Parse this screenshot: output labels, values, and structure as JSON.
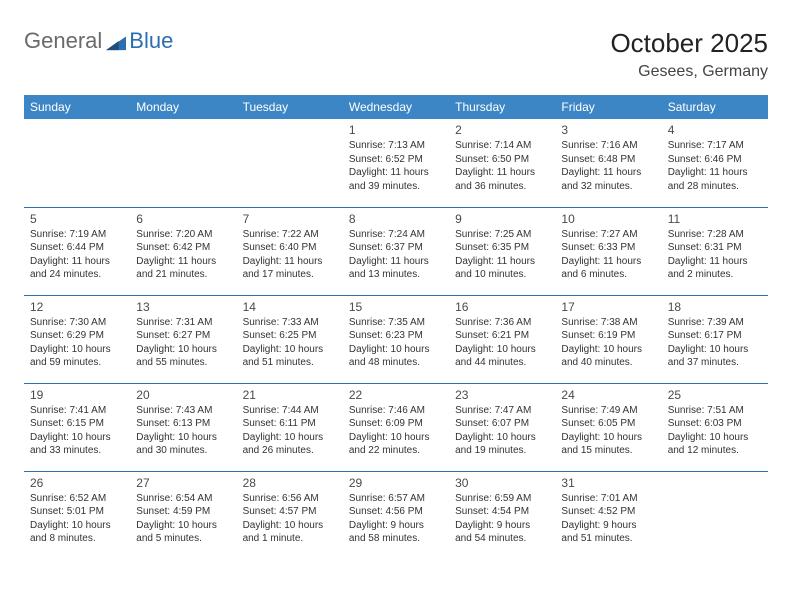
{
  "logo": {
    "general": "General",
    "blue": "Blue"
  },
  "title": "October 2025",
  "location": "Gesees, Germany",
  "weekdays": [
    "Sunday",
    "Monday",
    "Tuesday",
    "Wednesday",
    "Thursday",
    "Friday",
    "Saturday"
  ],
  "colors": {
    "header_bg": "#3d86c6",
    "header_text": "#ffffff",
    "rule": "#2b6fb0",
    "logo_gray": "#6a6a6a",
    "logo_blue": "#2b6fb0",
    "body_text": "#333333",
    "daynum_text": "#4a4a4a",
    "page_bg": "#ffffff"
  },
  "typography": {
    "title_fontsize": 26,
    "location_fontsize": 16,
    "weekday_fontsize": 12,
    "daynum_fontsize": 12,
    "cell_fontsize": 10
  },
  "grid": [
    [
      null,
      null,
      null,
      {
        "n": "1",
        "sunrise": "7:13 AM",
        "sunset": "6:52 PM",
        "day_h": 11,
        "day_m": 39
      },
      {
        "n": "2",
        "sunrise": "7:14 AM",
        "sunset": "6:50 PM",
        "day_h": 11,
        "day_m": 36
      },
      {
        "n": "3",
        "sunrise": "7:16 AM",
        "sunset": "6:48 PM",
        "day_h": 11,
        "day_m": 32
      },
      {
        "n": "4",
        "sunrise": "7:17 AM",
        "sunset": "6:46 PM",
        "day_h": 11,
        "day_m": 28
      }
    ],
    [
      {
        "n": "5",
        "sunrise": "7:19 AM",
        "sunset": "6:44 PM",
        "day_h": 11,
        "day_m": 24
      },
      {
        "n": "6",
        "sunrise": "7:20 AM",
        "sunset": "6:42 PM",
        "day_h": 11,
        "day_m": 21
      },
      {
        "n": "7",
        "sunrise": "7:22 AM",
        "sunset": "6:40 PM",
        "day_h": 11,
        "day_m": 17
      },
      {
        "n": "8",
        "sunrise": "7:24 AM",
        "sunset": "6:37 PM",
        "day_h": 11,
        "day_m": 13
      },
      {
        "n": "9",
        "sunrise": "7:25 AM",
        "sunset": "6:35 PM",
        "day_h": 11,
        "day_m": 10
      },
      {
        "n": "10",
        "sunrise": "7:27 AM",
        "sunset": "6:33 PM",
        "day_h": 11,
        "day_m": 6
      },
      {
        "n": "11",
        "sunrise": "7:28 AM",
        "sunset": "6:31 PM",
        "day_h": 11,
        "day_m": 2
      }
    ],
    [
      {
        "n": "12",
        "sunrise": "7:30 AM",
        "sunset": "6:29 PM",
        "day_h": 10,
        "day_m": 59
      },
      {
        "n": "13",
        "sunrise": "7:31 AM",
        "sunset": "6:27 PM",
        "day_h": 10,
        "day_m": 55
      },
      {
        "n": "14",
        "sunrise": "7:33 AM",
        "sunset": "6:25 PM",
        "day_h": 10,
        "day_m": 51
      },
      {
        "n": "15",
        "sunrise": "7:35 AM",
        "sunset": "6:23 PM",
        "day_h": 10,
        "day_m": 48
      },
      {
        "n": "16",
        "sunrise": "7:36 AM",
        "sunset": "6:21 PM",
        "day_h": 10,
        "day_m": 44
      },
      {
        "n": "17",
        "sunrise": "7:38 AM",
        "sunset": "6:19 PM",
        "day_h": 10,
        "day_m": 40
      },
      {
        "n": "18",
        "sunrise": "7:39 AM",
        "sunset": "6:17 PM",
        "day_h": 10,
        "day_m": 37
      }
    ],
    [
      {
        "n": "19",
        "sunrise": "7:41 AM",
        "sunset": "6:15 PM",
        "day_h": 10,
        "day_m": 33
      },
      {
        "n": "20",
        "sunrise": "7:43 AM",
        "sunset": "6:13 PM",
        "day_h": 10,
        "day_m": 30
      },
      {
        "n": "21",
        "sunrise": "7:44 AM",
        "sunset": "6:11 PM",
        "day_h": 10,
        "day_m": 26
      },
      {
        "n": "22",
        "sunrise": "7:46 AM",
        "sunset": "6:09 PM",
        "day_h": 10,
        "day_m": 22
      },
      {
        "n": "23",
        "sunrise": "7:47 AM",
        "sunset": "6:07 PM",
        "day_h": 10,
        "day_m": 19
      },
      {
        "n": "24",
        "sunrise": "7:49 AM",
        "sunset": "6:05 PM",
        "day_h": 10,
        "day_m": 15
      },
      {
        "n": "25",
        "sunrise": "7:51 AM",
        "sunset": "6:03 PM",
        "day_h": 10,
        "day_m": 12
      }
    ],
    [
      {
        "n": "26",
        "sunrise": "6:52 AM",
        "sunset": "5:01 PM",
        "day_h": 10,
        "day_m": 8
      },
      {
        "n": "27",
        "sunrise": "6:54 AM",
        "sunset": "4:59 PM",
        "day_h": 10,
        "day_m": 5
      },
      {
        "n": "28",
        "sunrise": "6:56 AM",
        "sunset": "4:57 PM",
        "day_h": 10,
        "day_m": 1
      },
      {
        "n": "29",
        "sunrise": "6:57 AM",
        "sunset": "4:56 PM",
        "day_h": 9,
        "day_m": 58
      },
      {
        "n": "30",
        "sunrise": "6:59 AM",
        "sunset": "4:54 PM",
        "day_h": 9,
        "day_m": 54
      },
      {
        "n": "31",
        "sunrise": "7:01 AM",
        "sunset": "4:52 PM",
        "day_h": 9,
        "day_m": 51
      },
      null
    ]
  ]
}
